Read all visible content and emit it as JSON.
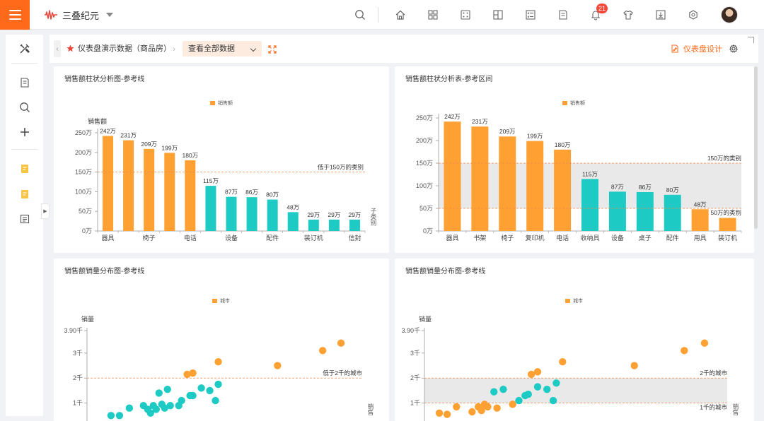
{
  "app": {
    "title": "三叠纪元",
    "notification_count": "21"
  },
  "top_icons": [
    "search-icon",
    "home-icon",
    "apps-icon",
    "dice-icon",
    "widgets-icon",
    "list-check-icon",
    "report-icon",
    "bell-icon",
    "shirt-icon",
    "download-icon",
    "hexagon-settings-icon"
  ],
  "sidebar": {
    "items": [
      "design-tools-icon",
      "report-list-icon",
      "search-icon",
      "add-icon",
      "note-yellow-icon",
      "note-yellow-2-icon",
      "table-list-icon"
    ]
  },
  "toolbar": {
    "breadcrumb": "仪表盘演示数据（商品房）",
    "select_value": "查看全部数据",
    "design_label": "仪表盘设计"
  },
  "colors": {
    "accent": "#ff6a1a",
    "orange": "#ffa033",
    "teal": "#1ecbc4",
    "refline": "#f2874a",
    "band": "#e9e9e9"
  },
  "panels": [
    {
      "title": "销售额柱状分析图-参考线",
      "legend": "销售额",
      "chart_data": {
        "type": "bar",
        "ylabel": "销售额",
        "xlabel": "子类别",
        "yticks": [
          "0万",
          "50万",
          "100万",
          "150万",
          "200万",
          "250万"
        ],
        "ylim": [
          0,
          250
        ],
        "bar_labels": [
          "242万",
          "231万",
          "209万",
          "199万",
          "180万",
          "115万",
          "87万",
          "86万",
          "80万",
          "48万",
          "29万",
          "29万",
          "29万"
        ],
        "values": [
          242,
          231,
          209,
          199,
          180,
          115,
          87,
          86,
          80,
          48,
          29,
          29,
          29
        ],
        "x_tick_labels": [
          "器具",
          "椅子",
          "电话",
          "设备",
          "配件",
          "装订机",
          "信封"
        ],
        "x_tick_index": [
          0,
          2,
          4,
          6,
          8,
          10,
          12
        ],
        "threshold": 150,
        "reference_label": "低于150万的类别"
      }
    },
    {
      "title": "销售额柱状分析表-参考区间",
      "legend": "销售额",
      "chart_data": {
        "type": "bar",
        "yticks": [
          "0万",
          "50万",
          "100万",
          "150万",
          "200万",
          "250万"
        ],
        "ylim": [
          0,
          250
        ],
        "categories": [
          "器具",
          "书架",
          "椅子",
          "复印机",
          "电话",
          "收纳具",
          "设备",
          "桌子",
          "配件",
          "用具",
          "装订机"
        ],
        "bar_labels": [
          "242万",
          "231万",
          "209万",
          "199万",
          "180万",
          "115万",
          "87万",
          "86万",
          "80万",
          "48万",
          ""
        ],
        "values": [
          242,
          231,
          209,
          199,
          180,
          115,
          87,
          86,
          80,
          48,
          29
        ],
        "band": [
          50,
          150
        ],
        "band_labels": [
          "150万的类别",
          "50万的类别"
        ]
      }
    },
    {
      "title": "销售额销量分布图-参考线",
      "legend": "城市",
      "chart_data": {
        "type": "scatter",
        "ylabel": "销量",
        "xlabel": "销售",
        "yticks": [
          "1千",
          "2千",
          "3千",
          "3.90千"
        ],
        "ytick_values": [
          1,
          2,
          3,
          3.9
        ],
        "ylim": [
          0,
          3.9
        ],
        "threshold": 2,
        "reference_label": "低于2千的城市",
        "points": [
          [
            0.12,
            0.5,
            "t"
          ],
          [
            0.18,
            0.5,
            "t"
          ],
          [
            0.25,
            0.8,
            "t"
          ],
          [
            0.35,
            0.9,
            "t"
          ],
          [
            0.38,
            0.75,
            "t"
          ],
          [
            0.4,
            0.6,
            "t"
          ],
          [
            0.42,
            0.9,
            "t"
          ],
          [
            0.44,
            0.75,
            "t"
          ],
          [
            0.46,
            1.4,
            "t"
          ],
          [
            0.48,
            0.95,
            "t"
          ],
          [
            0.5,
            0.8,
            "t"
          ],
          [
            0.52,
            1.55,
            "t"
          ],
          [
            0.54,
            0.9,
            "t"
          ],
          [
            0.6,
            0.9,
            "t"
          ],
          [
            0.62,
            1.1,
            "t"
          ],
          [
            0.68,
            1.3,
            "t"
          ],
          [
            0.7,
            1.3,
            "t"
          ],
          [
            0.76,
            1.6,
            "t"
          ],
          [
            0.82,
            1.5,
            "t"
          ],
          [
            0.86,
            1.1,
            "t"
          ],
          [
            0.88,
            1.75,
            "t"
          ],
          [
            0.66,
            2.15,
            "o"
          ],
          [
            0.7,
            2.2,
            "o"
          ],
          [
            0.88,
            2.65,
            "o"
          ],
          [
            1.3,
            2.5,
            "o"
          ],
          [
            1.62,
            3.1,
            "o"
          ],
          [
            1.75,
            3.4,
            "o"
          ]
        ]
      }
    },
    {
      "title": "销售额销量分布图-参考线",
      "legend": "城市",
      "chart_data": {
        "type": "scatter",
        "ylabel": "销量",
        "xlabel": "销售",
        "yticks": [
          "1千",
          "2千",
          "3千",
          "3.90千"
        ],
        "ytick_values": [
          1,
          2,
          3,
          3.9
        ],
        "ylim": [
          0,
          3.9
        ],
        "band": [
          1,
          2
        ],
        "band_labels": [
          "2千的城市",
          "1千的城市"
        ],
        "points": [
          [
            0.05,
            0.6,
            "o"
          ],
          [
            0.1,
            0.55,
            "o"
          ],
          [
            0.16,
            0.85,
            "o"
          ],
          [
            0.26,
            0.65,
            "o"
          ],
          [
            0.3,
            0.85,
            "o"
          ],
          [
            0.32,
            0.7,
            "o"
          ],
          [
            0.34,
            0.95,
            "o"
          ],
          [
            0.36,
            0.85,
            "o"
          ],
          [
            0.4,
            1.45,
            "t"
          ],
          [
            0.42,
            0.8,
            "o"
          ],
          [
            0.46,
            1.55,
            "t"
          ],
          [
            0.52,
            0.95,
            "o"
          ],
          [
            0.56,
            1.1,
            "t"
          ],
          [
            0.6,
            1.3,
            "t"
          ],
          [
            0.62,
            1.35,
            "t"
          ],
          [
            0.68,
            1.65,
            "t"
          ],
          [
            0.74,
            1.55,
            "t"
          ],
          [
            0.78,
            1.1,
            "t"
          ],
          [
            0.8,
            1.8,
            "t"
          ],
          [
            0.64,
            2.15,
            "o"
          ],
          [
            0.68,
            2.25,
            "o"
          ],
          [
            0.84,
            2.65,
            "o"
          ],
          [
            1.3,
            2.5,
            "o"
          ],
          [
            1.62,
            3.1,
            "o"
          ],
          [
            1.75,
            3.4,
            "o"
          ]
        ]
      }
    }
  ]
}
